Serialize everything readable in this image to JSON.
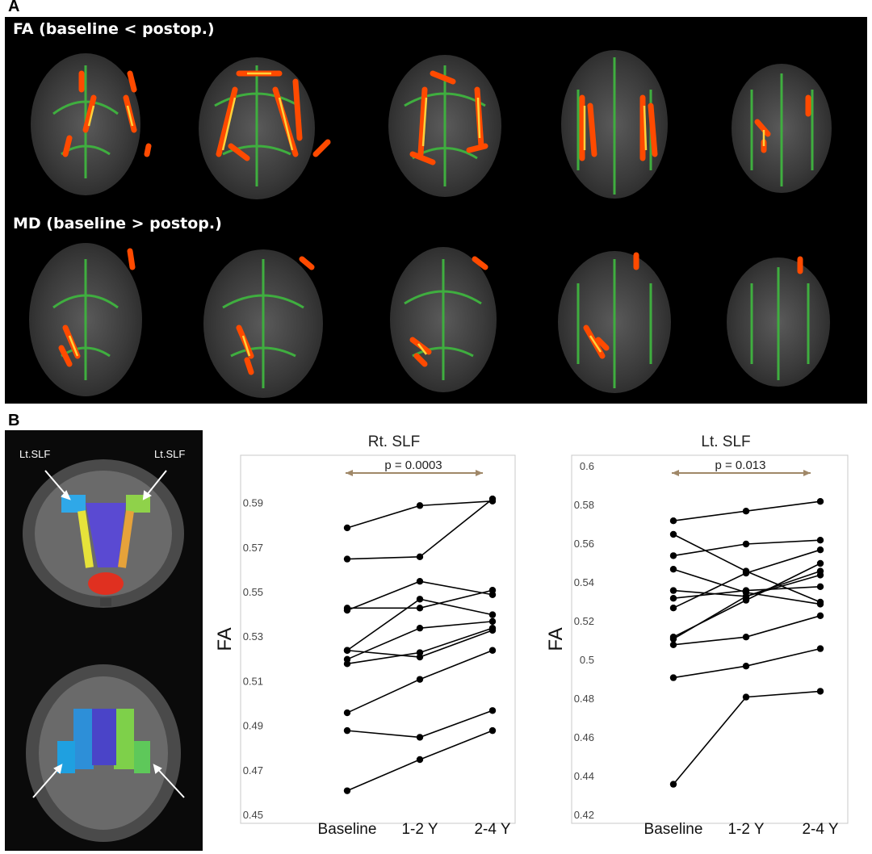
{
  "figure": {
    "panel_a_letter": "A",
    "panel_b_letter": "B",
    "row1_label": "FA (baseline < postop.)",
    "row2_label": "MD (baseline > postop.)",
    "arrow_label_left": "Lt.SLF",
    "arrow_label_right": "Lt.SLF"
  },
  "chart_data": [
    {
      "type": "line",
      "title": "Rt. SLF",
      "ylabel": "FA",
      "categories": [
        "Baseline",
        "1-2 Y",
        "2-4 Y"
      ],
      "yticks": [
        "0.45",
        "0.47",
        "0.49",
        "0.51",
        "0.53",
        "0.55",
        "0.57",
        "0.59"
      ],
      "ylim": [
        0.45,
        0.6
      ],
      "annotation": "p = 0.0003",
      "arrow_color": "#a08868",
      "series": [
        {
          "values": [
            0.579,
            0.589,
            0.591
          ]
        },
        {
          "values": [
            0.565,
            0.566,
            0.592
          ]
        },
        {
          "values": [
            0.542,
            0.555,
            0.549
          ]
        },
        {
          "values": [
            0.543,
            0.543,
            0.551
          ]
        },
        {
          "values": [
            0.524,
            0.547,
            0.54
          ]
        },
        {
          "values": [
            0.52,
            0.534,
            0.537
          ]
        },
        {
          "values": [
            0.518,
            0.523,
            0.534
          ]
        },
        {
          "values": [
            0.524,
            0.521,
            0.533
          ]
        },
        {
          "values": [
            0.496,
            0.511,
            0.524
          ]
        },
        {
          "values": [
            0.488,
            0.485,
            0.497
          ]
        },
        {
          "values": [
            0.461,
            0.475,
            0.488
          ]
        }
      ]
    },
    {
      "type": "line",
      "title": "Lt. SLF",
      "ylabel": "FA",
      "categories": [
        "Baseline",
        "1-2 Y",
        "2-4 Y"
      ],
      "yticks": [
        "0.42",
        "0.44",
        "0.46",
        "0.48",
        "0.5",
        "0.52",
        "0.54",
        "0.56",
        "0.58",
        "0.6"
      ],
      "ylim": [
        0.42,
        0.6
      ],
      "annotation": "p = 0.013",
      "arrow_color": "#a08868",
      "series": [
        {
          "values": [
            0.572,
            0.577,
            0.582
          ]
        },
        {
          "values": [
            0.565,
            0.546,
            0.53
          ]
        },
        {
          "values": [
            0.554,
            0.56,
            0.562
          ]
        },
        {
          "values": [
            0.547,
            0.535,
            0.529
          ]
        },
        {
          "values": [
            0.536,
            0.533,
            0.544
          ]
        },
        {
          "values": [
            0.532,
            0.536,
            0.538
          ]
        },
        {
          "values": [
            0.527,
            0.545,
            0.557
          ]
        },
        {
          "values": [
            0.512,
            0.531,
            0.55
          ]
        },
        {
          "values": [
            0.511,
            0.533,
            0.546
          ]
        },
        {
          "values": [
            0.508,
            0.512,
            0.523
          ]
        },
        {
          "values": [
            0.491,
            0.497,
            0.506
          ]
        },
        {
          "values": [
            0.436,
            0.481,
            0.484
          ]
        }
      ]
    }
  ]
}
